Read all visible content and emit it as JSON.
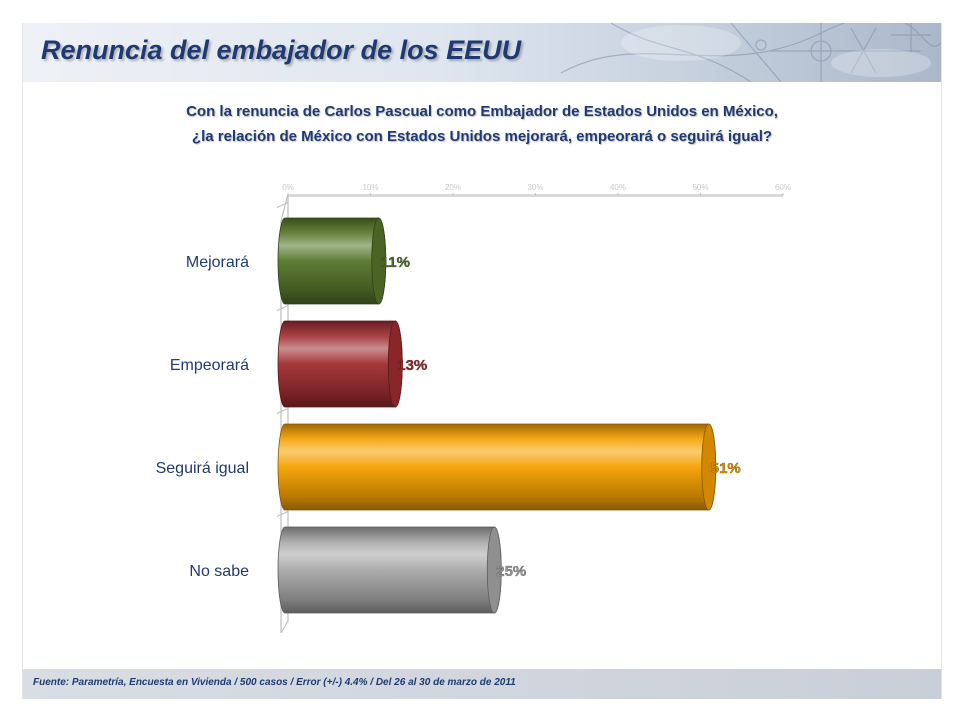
{
  "page": {
    "title": "Renuncia del embajador de los EEUU",
    "question_line1": "Con la renuncia de Carlos Pascual como Embajador de Estados Unidos en México,",
    "question_line2": "¿la relación de México con Estados Unidos mejorará, empeorará o seguirá igual?",
    "source": "Fuente: Parametría, Encuesta en Vivienda / 500 casos / Error (+/-) 4.4% / Del  26 al 30 de marzo de 2011"
  },
  "chart_data": {
    "type": "bar",
    "orientation": "horizontal",
    "title": "Con la renuncia de Carlos Pascual como Embajador de Estados Unidos en México, ¿la relación de México con Estados Unidos mejorará, empeorará o seguirá igual?",
    "categories": [
      "Mejorará",
      "Empeorará",
      "Seguirá igual",
      "No sabe"
    ],
    "values": [
      11,
      13,
      51,
      25
    ],
    "value_labels": [
      "11%",
      "13%",
      "51%",
      "25%"
    ],
    "colors": [
      "#56762a",
      "#a02d31",
      "#f6a000",
      "#a8a8a8"
    ],
    "xlim": [
      0,
      60
    ],
    "xticks": [
      "0%",
      "10%",
      "20%",
      "30%",
      "40%",
      "50%",
      "60%"
    ],
    "grid": false,
    "legend": "none",
    "style": "3d-cylinder"
  }
}
